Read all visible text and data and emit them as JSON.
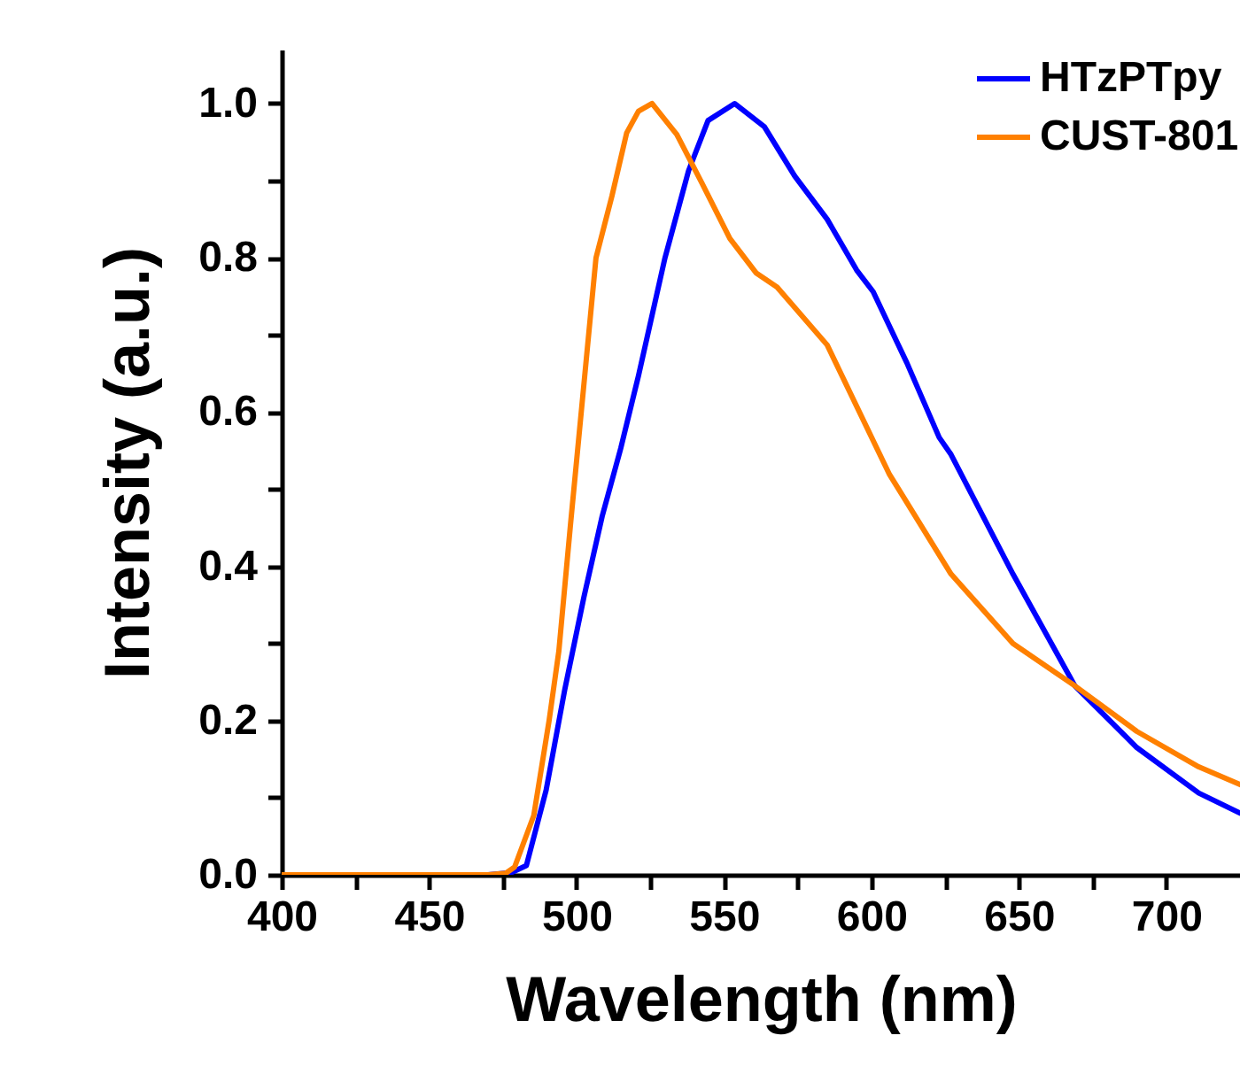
{
  "chart_data": {
    "type": "line",
    "xlabel": "Wavelength (nm)",
    "ylabel": "Intensity (a.u.)",
    "xlim": [
      400,
      725
    ],
    "ylim": [
      0,
      1.07
    ],
    "xticks": [
      400,
      {
        "value": 425,
        "label": null
      },
      450,
      {
        "value": 475,
        "label": null
      },
      500,
      {
        "value": 525,
        "label": null
      },
      550,
      {
        "value": 575,
        "label": null
      },
      600,
      {
        "value": 625,
        "label": null
      },
      650,
      {
        "value": 675,
        "label": null
      },
      700
    ],
    "yticks": [
      {
        "value": 0,
        "label": "0.0"
      },
      {
        "value": 0.1,
        "label": null
      },
      0.2,
      {
        "value": 0.3,
        "label": null
      },
      0.4,
      {
        "value": 0.5,
        "label": null
      },
      0.6,
      {
        "value": 0.7,
        "label": null
      },
      0.8,
      {
        "value": 0.9,
        "label": null
      },
      {
        "value": 1,
        "label": "1.0"
      }
    ],
    "grid": false,
    "legend": "top right",
    "line_style": "solid",
    "marker": "none",
    "series": [
      {
        "name": "HTzPTpy",
        "color": "#0000ff",
        "x": [
          470,
          478,
          483,
          489.7,
          496,
          502.5,
          508.7,
          515,
          521,
          530,
          538,
          544.6,
          553.6,
          563.7,
          574,
          585,
          595,
          600.6,
          612,
          623,
          627,
          648,
          669,
          690,
          711,
          725
        ],
        "values": [
          0,
          0.003,
          0.012,
          0.11,
          0.24,
          0.36,
          0.465,
          0.553,
          0.647,
          0.8,
          0.913,
          0.978,
          1.0,
          0.97,
          0.906,
          0.85,
          0.784,
          0.756,
          0.664,
          0.567,
          0.545,
          0.39,
          0.245,
          0.165,
          0.106,
          0.08
        ]
      },
      {
        "name": "CUST-801",
        "color": "#ff8000",
        "x": [
          400,
          440,
          470,
          476,
          479,
          485.5,
          490.7,
          494,
          498,
          506.6,
          512,
          517,
          521,
          525.6,
          534,
          542.5,
          552,
          561,
          568,
          585,
          606,
          627,
          648,
          669,
          690,
          711,
          725
        ],
        "values": [
          0,
          0,
          0,
          0.002,
          0.01,
          0.077,
          0.2,
          0.29,
          0.456,
          0.8,
          0.88,
          0.962,
          0.99,
          1.0,
          0.96,
          0.897,
          0.825,
          0.78,
          0.762,
          0.687,
          0.52,
          0.39,
          0.3,
          0.245,
          0.186,
          0.14,
          0.117
        ]
      }
    ]
  }
}
